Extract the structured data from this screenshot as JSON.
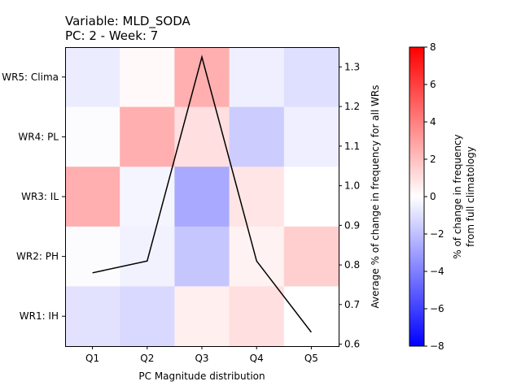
{
  "chart_data": {
    "type": "heatmap",
    "title_line1": "Variable: MLD_SODA",
    "title_line2": "PC: 2 - Week: 7",
    "xlabel": "PC Magnitude distribution",
    "ylabel_right": "Average % of change in frequency for all WRs",
    "colorbar_label_line1": "% of change in frequency",
    "colorbar_label_line2": "from full climatology",
    "categories": [
      "Q1",
      "Q2",
      "Q3",
      "Q4",
      "Q5"
    ],
    "rows": [
      "WR5: Clima",
      "WR4: PL",
      "WR3: IL",
      "WR2: PH",
      "WR1: IH"
    ],
    "cell_values": [
      [
        -0.6,
        0.2,
        2.5,
        -0.5,
        -1.0
      ],
      [
        -0.1,
        2.5,
        1.0,
        -1.6,
        -0.5
      ],
      [
        2.5,
        -0.3,
        -2.7,
        0.8,
        0.0
      ],
      [
        -0.1,
        -0.4,
        -1.8,
        0.4,
        1.5
      ],
      [
        -0.9,
        -1.2,
        0.5,
        1.0,
        0.0
      ]
    ],
    "colorbar": {
      "min": -8,
      "max": 8,
      "ticks": [
        -8,
        -6,
        -4,
        -2,
        0,
        2,
        4,
        6,
        8
      ]
    },
    "line_series": {
      "values": [
        0.78,
        0.81,
        1.325,
        0.81,
        0.63
      ],
      "ylim": [
        0.595,
        1.35
      ],
      "ticks": [
        0.6,
        0.7,
        0.8,
        0.9,
        1.0,
        1.1,
        1.2,
        1.3
      ]
    }
  }
}
